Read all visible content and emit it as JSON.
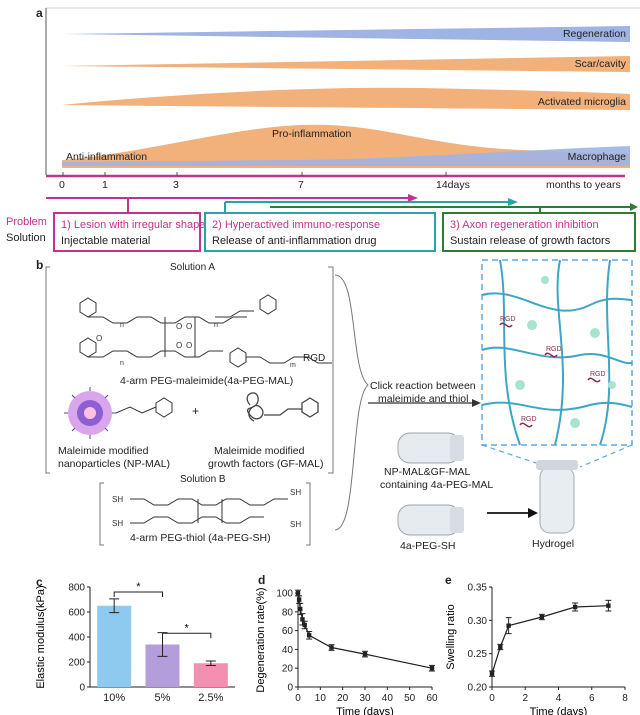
{
  "panel_a": {
    "letter": "a",
    "bands": [
      "Regeneration",
      "Scar/cavity",
      "Activated microglia",
      "Pro-inflammation",
      "Anti-inflammation",
      "Macrophage"
    ],
    "timeline_ticks": [
      "0",
      "1",
      "3",
      "7",
      "14days",
      "months to years"
    ],
    "row_labels": {
      "problem": "Problem",
      "solution": "Solution"
    },
    "box1": {
      "title": "1) Lesion with irregular shape",
      "sub": "Injectable material"
    },
    "box2": {
      "title": "2) Hyperactived immuno-response",
      "sub": "Release of anti-inflammation drug"
    },
    "box3": {
      "title": "3) Axon regeneration inhibition",
      "sub": "Sustain release of growth factors"
    },
    "colors": {
      "magenta": "#c2338c",
      "teal": "#2aa3a8",
      "green": "#2e7d32",
      "orange": "#f0a56a",
      "blue": "#8aa3d8"
    }
  },
  "panel_b": {
    "letter": "b",
    "solution_a": "Solution A",
    "four_arm_mal": "4-arm PEG-maleimide(4a-PEG-MAL)",
    "rgd": "RGD",
    "np_label_1": "Maleimide modified",
    "np_label_2": "nanoparticles (NP-MAL)",
    "gf_label_1": "Maleimide modified",
    "gf_label_2": "growth factors (GF-MAL)",
    "plus": "+",
    "solution_b": "Solution B",
    "four_arm_sh": "4-arm PEG-thiol (4a-PEG-SH)",
    "click_1": "Click reaction between",
    "click_2": "maleimide and thiol",
    "tube1_1": "NP-MAL&GF-MAL",
    "tube1_2": "containing 4a-PEG-MAL",
    "tube2": "4a-PEG-SH",
    "hydrogel": "Hydrogel"
  },
  "panel_c": {
    "letter": "c",
    "chart_data": {
      "type": "bar",
      "categories": [
        "10%",
        "5%",
        "2.5%"
      ],
      "values": [
        650,
        340,
        190
      ],
      "errors": [
        55,
        95,
        18
      ],
      "colors": [
        "#8ec9f0",
        "#b39ddb",
        "#f48fb1"
      ],
      "ylabel": "Elastic modulus(kPa)",
      "ylim": [
        0,
        800
      ],
      "yticks": [
        "0",
        "200",
        "400",
        "600",
        "800"
      ],
      "significance": [
        "*",
        "*"
      ]
    }
  },
  "panel_d": {
    "letter": "d",
    "chart_data": {
      "type": "line",
      "x": [
        0,
        0.5,
        1,
        2,
        3,
        5,
        15,
        30,
        60
      ],
      "y": [
        100,
        93,
        83,
        72,
        66,
        55,
        42,
        35,
        20
      ],
      "errors": [
        3,
        4,
        6,
        6,
        4,
        4,
        3,
        3,
        3
      ],
      "xlabel": "Time (days)",
      "ylabel": "Degeneration rate(%)",
      "xlim": [
        0,
        60
      ],
      "ylim": [
        0,
        100
      ],
      "xticks": [
        "0",
        "10",
        "20",
        "30",
        "40",
        "50",
        "60"
      ],
      "yticks": [
        "0",
        "20",
        "40",
        "60",
        "80",
        "100"
      ]
    }
  },
  "panel_e": {
    "letter": "e",
    "chart_data": {
      "type": "line",
      "x": [
        0,
        0.5,
        1,
        3,
        5,
        7
      ],
      "y": [
        0.22,
        0.26,
        0.292,
        0.305,
        0.32,
        0.322
      ],
      "errors": [
        0.004,
        0.004,
        0.012,
        0.004,
        0.006,
        0.008
      ],
      "xlabel": "Time (days)",
      "ylabel": "Swelling ratio",
      "xlim": [
        0,
        8
      ],
      "ylim": [
        0.2,
        0.35
      ],
      "xticks": [
        "0",
        "2",
        "4",
        "6",
        "8"
      ],
      "yticks": [
        "0.20",
        "0.25",
        "0.30",
        "0.35"
      ]
    }
  }
}
